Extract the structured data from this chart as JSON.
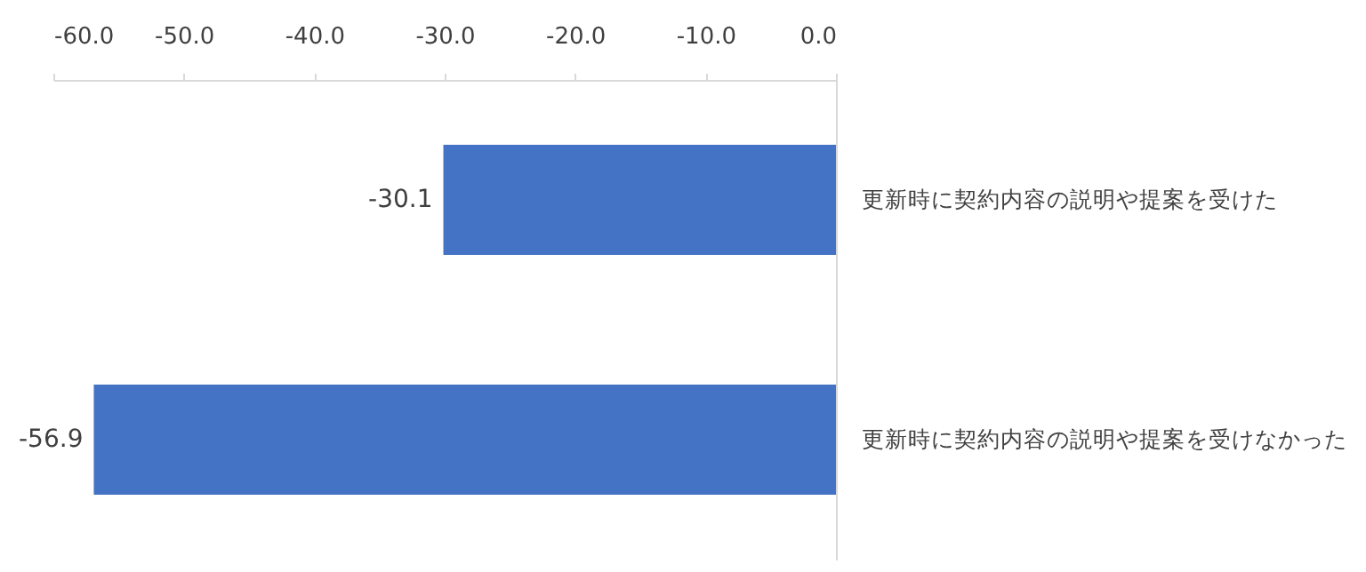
{
  "chart_data": {
    "type": "bar",
    "orientation": "horizontal",
    "categories": [
      "更新時に契約内容の説明や提案を受けた",
      "更新時に契約内容の説明や提案を受けなかった"
    ],
    "values": [
      -30.1,
      -56.9
    ],
    "color": "#4472c4",
    "xlim": [
      -60,
      0
    ],
    "xticks": [
      {
        "value": -60,
        "label": "-60.0"
      },
      {
        "value": -50,
        "label": "-50.0"
      },
      {
        "value": -40,
        "label": "-40.0"
      },
      {
        "value": -30,
        "label": "-30.0"
      },
      {
        "value": -20,
        "label": "-20.0"
      },
      {
        "value": -10,
        "label": "-10.0"
      },
      {
        "value": 0,
        "label": "0.0"
      }
    ],
    "data_labels": true,
    "grid": false
  }
}
